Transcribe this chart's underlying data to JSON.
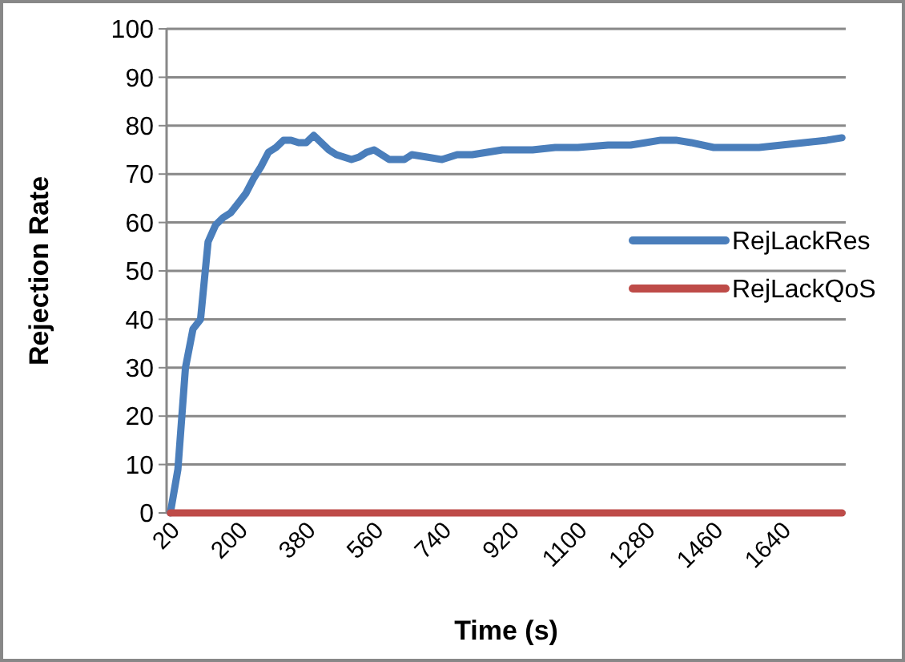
{
  "chart_data": {
    "type": "line",
    "xlabel": "Time (s)",
    "ylabel": "Rejection Rate",
    "xlim": [
      10,
      1810
    ],
    "ylim": [
      0,
      100
    ],
    "xticks": [
      20,
      200,
      380,
      560,
      740,
      920,
      1100,
      1280,
      1460,
      1640
    ],
    "yticks": [
      0,
      10,
      20,
      30,
      40,
      50,
      60,
      70,
      80,
      90,
      100
    ],
    "grid": "y",
    "legend": "right",
    "marker": "none",
    "line_style": "solid",
    "series": [
      {
        "name": "RejLackRes",
        "color": "#4a7ebb",
        "x": [
          20,
          40,
          60,
          80,
          100,
          120,
          140,
          160,
          180,
          200,
          220,
          240,
          260,
          280,
          300,
          320,
          340,
          360,
          380,
          400,
          420,
          440,
          460,
          480,
          500,
          520,
          540,
          560,
          580,
          600,
          620,
          640,
          660,
          700,
          740,
          780,
          820,
          860,
          900,
          940,
          980,
          1040,
          1100,
          1180,
          1240,
          1280,
          1320,
          1360,
          1400,
          1460,
          1520,
          1580,
          1640,
          1700,
          1760,
          1800
        ],
        "values": [
          0,
          9,
          30,
          38,
          40,
          56,
          59.5,
          61,
          62,
          64,
          66,
          69,
          71.5,
          74.5,
          75.5,
          77,
          77,
          76.5,
          76.5,
          78,
          76.5,
          75,
          74,
          73.5,
          73,
          73.5,
          74.5,
          75,
          74,
          73,
          73,
          73,
          74,
          73.5,
          73,
          74,
          74,
          74.5,
          75,
          75,
          75,
          75.5,
          75.5,
          76,
          76,
          76.5,
          77,
          77,
          76.5,
          75.5,
          75.5,
          75.5,
          76,
          76.5,
          77,
          77.5
        ]
      },
      {
        "name": "RejLackQoS",
        "color": "#be4b48",
        "x": [
          20,
          1800
        ],
        "values": [
          0,
          0
        ]
      }
    ]
  }
}
